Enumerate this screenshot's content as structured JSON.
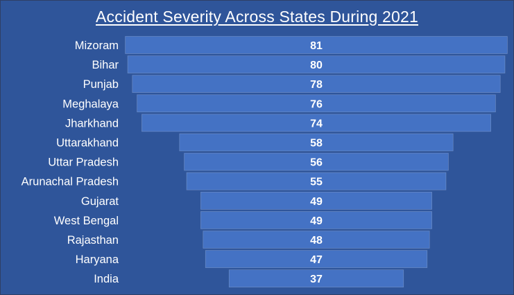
{
  "chart_data": {
    "type": "bar",
    "orientation": "horizontal",
    "style": "funnel",
    "title": "Accident Severity Across States During 2021",
    "categories": [
      "Mizoram",
      "Bihar",
      "Punjab",
      "Meghalaya",
      "Jharkhand",
      "Uttarakhand",
      "Uttar Pradesh",
      "Arunachal Pradesh",
      "Gujarat",
      "West Bengal",
      "Rajasthan",
      "Haryana",
      "India"
    ],
    "values": [
      81,
      80,
      78,
      76,
      74,
      58,
      56,
      55,
      49,
      49,
      48,
      47,
      37
    ],
    "data_labels": [
      "81",
      "80",
      "78",
      "76",
      "74",
      "58",
      "56",
      "55",
      "49",
      "49",
      "48",
      "47",
      "37"
    ],
    "xlabel": "",
    "ylabel": "",
    "grid": false,
    "legend": "none",
    "colors": {
      "background": "#2f559a",
      "bar": "#4472c4",
      "text": "#ffffff"
    }
  }
}
